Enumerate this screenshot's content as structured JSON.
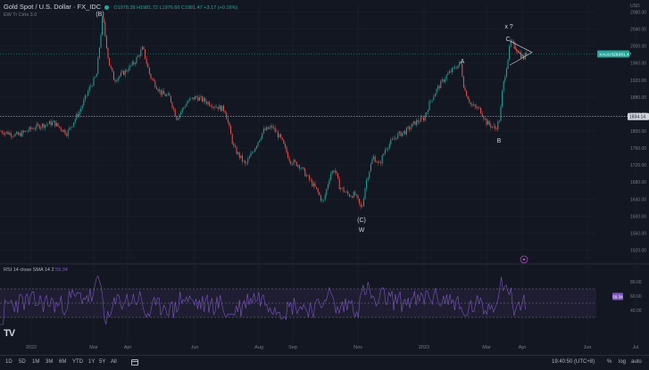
{
  "legend": {
    "title": "Gold Spot / U.S. Dollar · FX_IDC",
    "ohlc": "O1978.38 H1981.72 L1976.66 C1981.47 +3.17 (+0.16%)",
    "indicator": "EW Tr Ctrls 3.0"
  },
  "rsi": {
    "label": "RSI 14 close SMA 14 2",
    "value": "59.34",
    "badge": "59.34",
    "levels": [
      "80.00",
      "60.00",
      "40.00"
    ]
  },
  "price_axis": {
    "ticks": [
      "2080.00",
      "2040.00",
      "2000.00",
      "1960.00",
      "1920.00",
      "1880.00",
      "1840.00",
      "1800.00",
      "1760.00",
      "1720.00",
      "1680.00",
      "1640.00",
      "1600.00",
      "1560.00",
      "1520.00"
    ],
    "top_label": "USD",
    "current_label": "XAUUSD",
    "current_value": "1981.47",
    "hline_value": "1834.14"
  },
  "time_axis": {
    "labels": [
      "2022",
      "Mar",
      "Apr",
      "Jun",
      "Aug",
      "Sep",
      "Nov",
      "2023",
      "Mar",
      "Apr",
      "Jun",
      "Jul"
    ]
  },
  "waves": {
    "B_top": "(B)",
    "C_bottom": "(C)",
    "W": "W",
    "A": "A",
    "B": "B",
    "C": "C",
    "xq": "x ?"
  },
  "bottom_bar": {
    "timeframes": [
      "1D",
      "5D",
      "1M",
      "3M",
      "6M",
      "YTD",
      "1Y",
      "5Y",
      "All"
    ],
    "clock": "19:40:50 (UTC+8)",
    "percent": "%",
    "log": "log",
    "auto": "auto"
  },
  "colors": {
    "background": "#131722",
    "up": "#26a69a",
    "down": "#ef5350",
    "rsi": "#7e57c2",
    "grid": "#1e222d"
  },
  "chart_data": {
    "type": "candlestick",
    "title": "Gold Spot / U.S. Dollar · FX_IDC",
    "price_range": [
      1500,
      2100
    ],
    "key_points": [
      {
        "label": "(B)",
        "date": "2022-03-08",
        "price": 2070
      },
      {
        "label": "(C)",
        "date": "2022-11-03",
        "price": 1615
      },
      {
        "label": "A",
        "date": "2023-02-01",
        "price": 1960
      },
      {
        "label": "B",
        "date": "2023-02-28",
        "price": 1805
      },
      {
        "label": "C",
        "date": "2023-03-20",
        "price": 2010
      }
    ],
    "hline": 1834.14,
    "current_price": 1981.47,
    "rsi_value": 59.34
  }
}
